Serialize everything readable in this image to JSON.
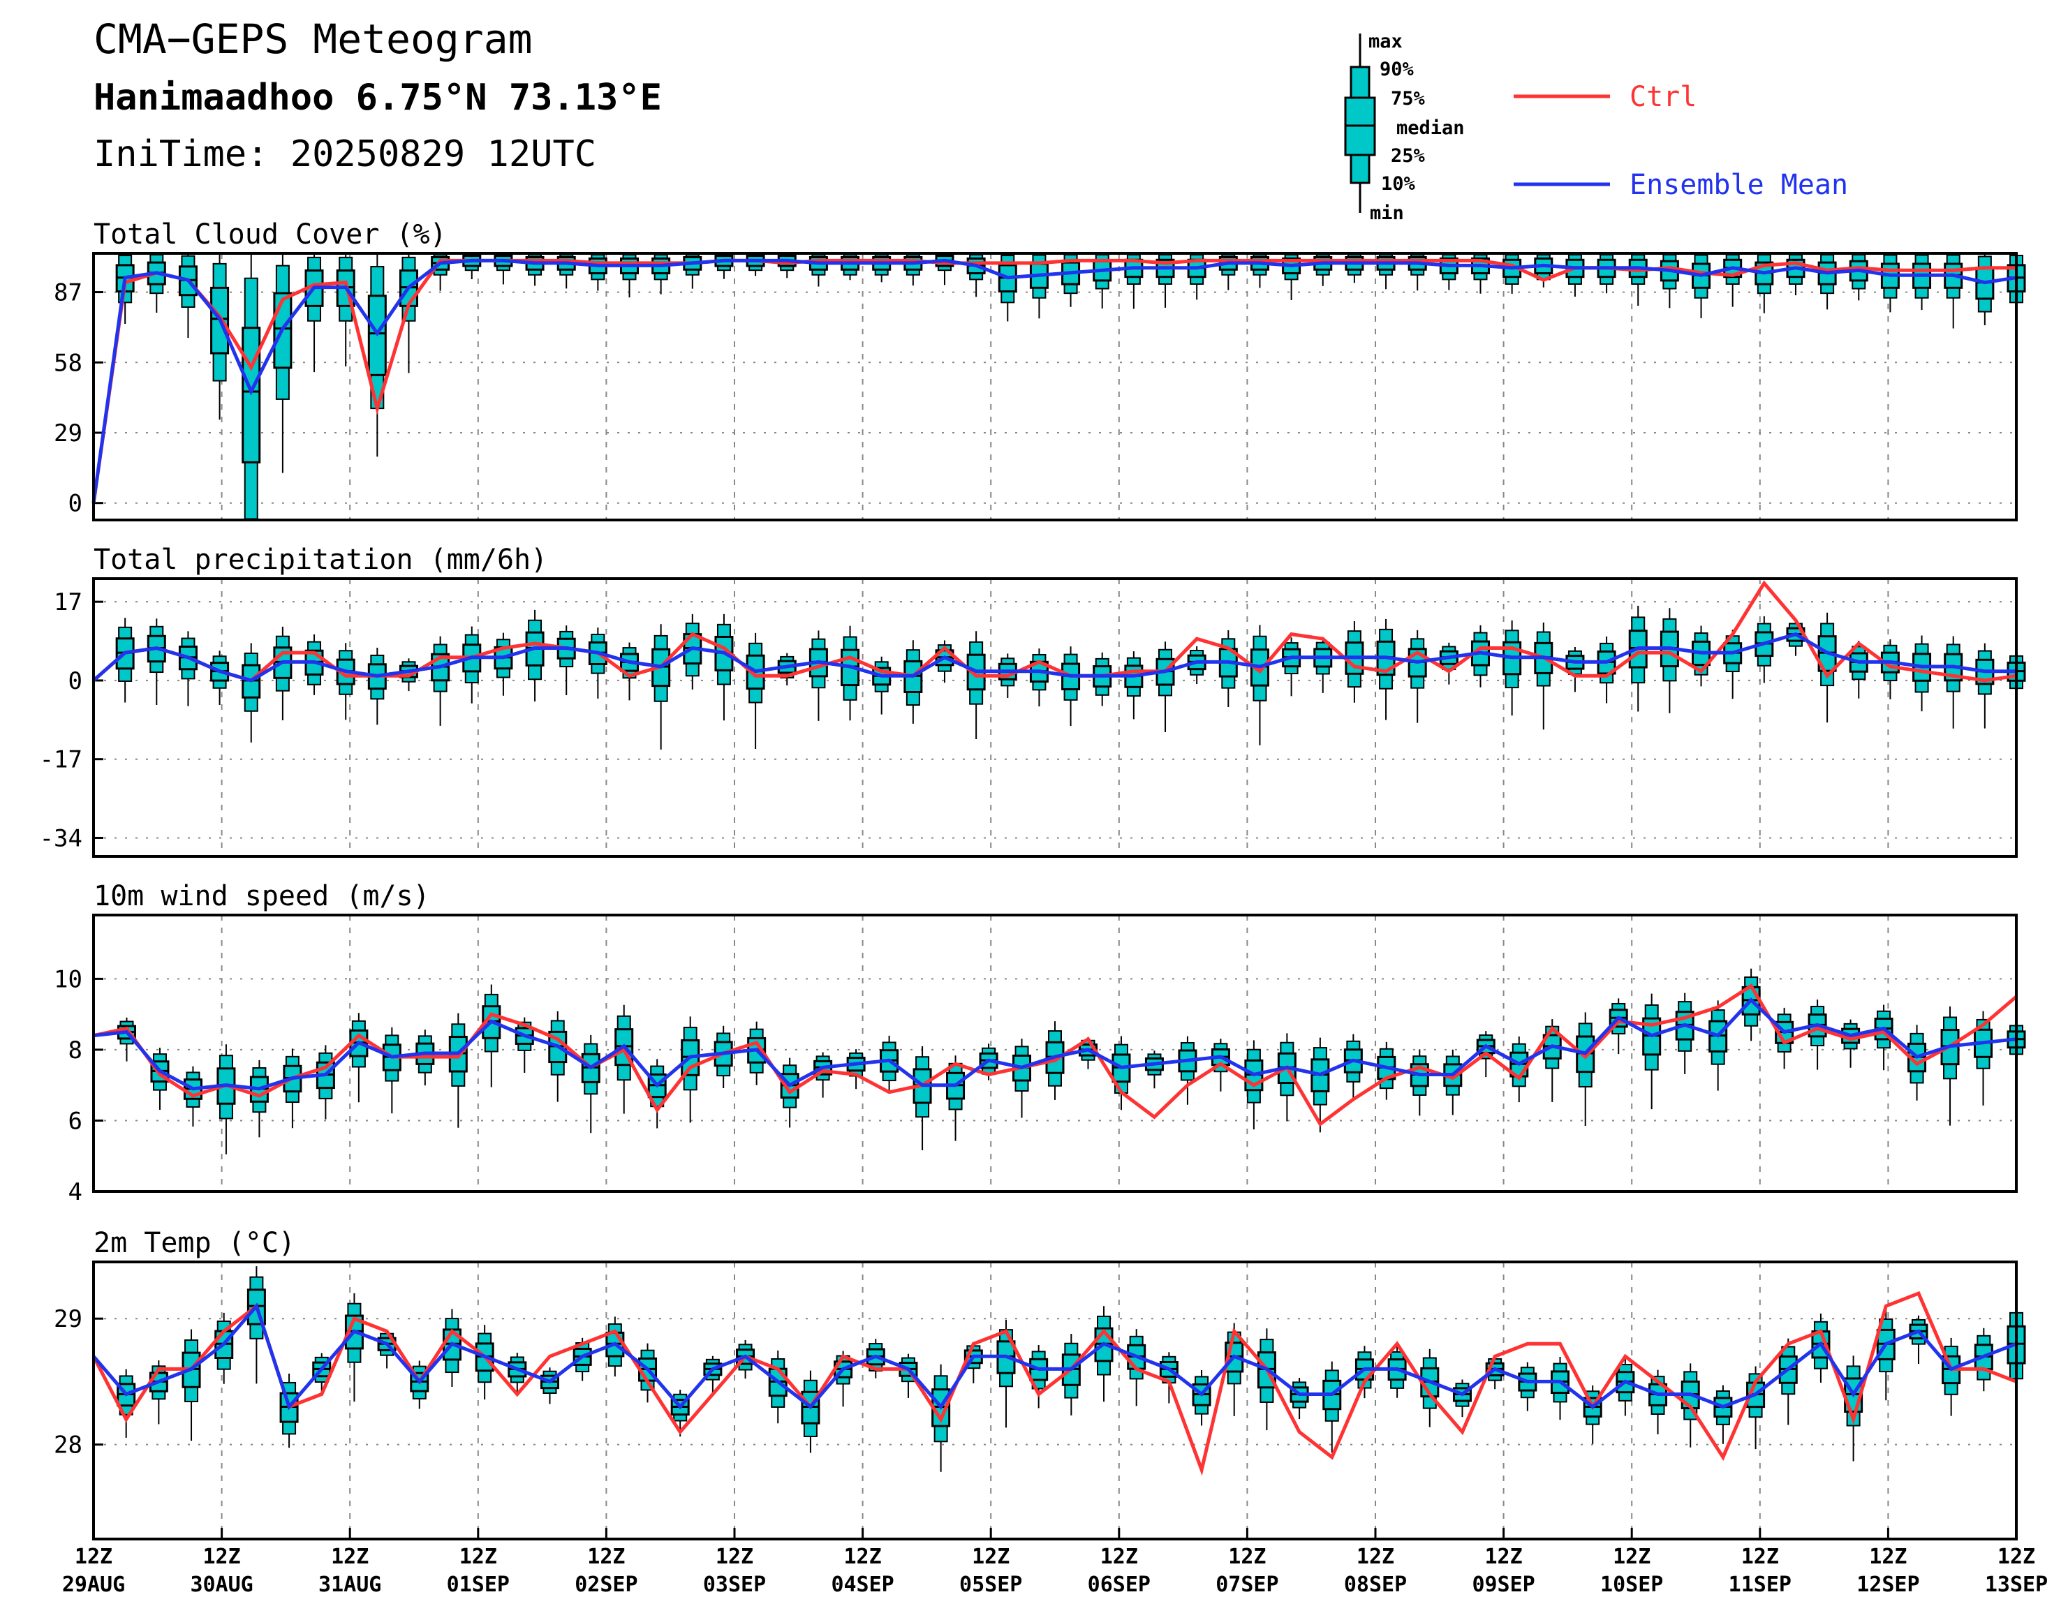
{
  "header": {
    "title": "CMA−GEPS Meteogram",
    "location": "Hanimaadhoo 6.75°N 73.13°E",
    "init_time": "IniTime: 20250829 12UTC"
  },
  "legend": {
    "box_labels": [
      "max",
      "90%",
      "75%",
      "median",
      "25%",
      "10%",
      "min"
    ],
    "ctrl": "Ctrl",
    "mean": "Ensemble Mean",
    "colors": {
      "ctrl": "#ff3333",
      "mean": "#2233ee",
      "box": "#00c8c8"
    }
  },
  "x_axis": {
    "ticks": [
      {
        "top": "12Z",
        "bottom": "29AUG"
      },
      {
        "top": "12Z",
        "bottom": "30AUG"
      },
      {
        "top": "12Z",
        "bottom": "31AUG"
      },
      {
        "top": "12Z",
        "bottom": "01SEP"
      },
      {
        "top": "12Z",
        "bottom": "02SEP"
      },
      {
        "top": "12Z",
        "bottom": "03SEP"
      },
      {
        "top": "12Z",
        "bottom": "04SEP"
      },
      {
        "top": "12Z",
        "bottom": "05SEP"
      },
      {
        "top": "12Z",
        "bottom": "06SEP"
      },
      {
        "top": "12Z",
        "bottom": "07SEP"
      },
      {
        "top": "12Z",
        "bottom": "08SEP"
      },
      {
        "top": "12Z",
        "bottom": "09SEP"
      },
      {
        "top": "12Z",
        "bottom": "10SEP"
      },
      {
        "top": "12Z",
        "bottom": "11SEP"
      },
      {
        "top": "12Z",
        "bottom": "12SEP"
      },
      {
        "top": "12Z",
        "bottom": "13SEP"
      }
    ]
  },
  "chart_data": [
    {
      "type": "box+line",
      "title": "Total Cloud Cover (%)",
      "ylim": [
        -7,
        103
      ],
      "yticks": [
        0,
        29,
        58,
        87
      ],
      "x": "6-hourly steps from 2025-08-29 12Z to 2025-09-13 12Z",
      "ctrl": [
        0,
        91,
        95,
        92,
        77,
        56,
        84,
        90,
        91,
        39,
        82,
        100,
        100,
        100,
        100,
        100,
        99,
        99,
        99,
        99,
        100,
        100,
        99,
        100,
        100,
        100,
        100,
        99,
        99,
        99,
        99,
        100,
        100,
        100,
        99,
        100,
        100,
        100,
        100,
        100,
        100,
        100,
        100,
        100,
        100,
        98,
        92,
        97,
        97,
        96,
        97,
        95,
        94,
        98,
        99,
        96,
        97,
        96,
        96,
        96,
        97,
        97
      ],
      "mean": [
        0,
        93,
        95,
        92,
        76,
        46,
        72,
        89,
        89,
        70,
        89,
        99,
        100,
        100,
        99,
        99,
        98,
        98,
        98,
        99,
        100,
        100,
        100,
        99,
        99,
        99,
        99,
        100,
        98,
        93,
        94,
        95,
        96,
        97,
        97,
        97,
        99,
        99,
        98,
        99,
        99,
        99,
        99,
        98,
        98,
        97,
        98,
        97,
        97,
        97,
        96,
        94,
        97,
        95,
        97,
        95,
        96,
        94,
        94,
        94,
        91,
        93
      ]
    },
    {
      "type": "box+line",
      "title": "Total precipitation (mm/6h)",
      "ylim": [
        -38,
        22
      ],
      "yticks": [
        -34,
        -17,
        0,
        17
      ],
      "ctrl": [
        0,
        6,
        7,
        5,
        2,
        0,
        6,
        6,
        1,
        1,
        1,
        5,
        5,
        7,
        8,
        7,
        6,
        1,
        3,
        10,
        7,
        1,
        1,
        3,
        5,
        2,
        1,
        7,
        1,
        1,
        4,
        1,
        1,
        2,
        2,
        9,
        7,
        2,
        10,
        9,
        3,
        2,
        6,
        2,
        7,
        7,
        5,
        1,
        1,
        6,
        6,
        2,
        10,
        21,
        13,
        1,
        8,
        3,
        2,
        1,
        0,
        1
      ],
      "mean": [
        0,
        6,
        7,
        5,
        2,
        0,
        4,
        4,
        2,
        1,
        2,
        3,
        5,
        5,
        7,
        7,
        6,
        4,
        3,
        7,
        6,
        2,
        3,
        4,
        3,
        1,
        1,
        5,
        2,
        2,
        2,
        1,
        1,
        1,
        2,
        4,
        4,
        3,
        5,
        5,
        5,
        5,
        4,
        5,
        6,
        5,
        5,
        4,
        4,
        7,
        7,
        6,
        6,
        8,
        10,
        6,
        4,
        4,
        3,
        3,
        2,
        2
      ]
    },
    {
      "type": "box+line",
      "title": "10m wind speed (m/s)",
      "ylim": [
        4,
        11.8
      ],
      "yticks": [
        4,
        6,
        8,
        10
      ],
      "ctrl": [
        8.4,
        8.6,
        7.3,
        6.7,
        7.0,
        6.7,
        7.2,
        7.5,
        8.4,
        7.8,
        7.8,
        7.8,
        9.0,
        8.7,
        8.3,
        7.5,
        8.0,
        6.3,
        7.5,
        7.9,
        8.2,
        6.8,
        7.4,
        7.3,
        6.8,
        7.0,
        7.6,
        7.3,
        7.5,
        7.7,
        8.3,
        6.8,
        6.1,
        7.0,
        7.6,
        7.0,
        7.5,
        5.9,
        6.6,
        7.2,
        7.5,
        7.2,
        7.9,
        7.2,
        8.6,
        7.8,
        8.8,
        8.7,
        8.9,
        9.2,
        9.8,
        8.2,
        8.6,
        8.3,
        8.5,
        7.6,
        8.1,
        8.7,
        9.5
      ],
      "mean": [
        8.4,
        8.5,
        7.4,
        6.9,
        7.0,
        6.9,
        7.2,
        7.3,
        8.2,
        7.8,
        7.9,
        7.9,
        8.8,
        8.4,
        8.1,
        7.5,
        8.1,
        7.0,
        7.8,
        7.9,
        8.0,
        7.0,
        7.5,
        7.6,
        7.7,
        7.0,
        7.0,
        7.7,
        7.5,
        7.8,
        8.0,
        7.5,
        7.6,
        7.7,
        7.8,
        7.3,
        7.5,
        7.3,
        7.7,
        7.5,
        7.3,
        7.3,
        8.1,
        7.6,
        8.1,
        7.9,
        8.9,
        8.4,
        8.7,
        8.4,
        9.4,
        8.5,
        8.7,
        8.4,
        8.6,
        7.8,
        8.1,
        8.2,
        8.3
      ]
    },
    {
      "type": "box+line",
      "title": "2m Temp (°C)",
      "ylim": [
        27.25,
        29.45
      ],
      "yticks": [
        28,
        29
      ],
      "ctrl": [
        28.7,
        28.2,
        28.6,
        28.6,
        28.9,
        29.1,
        28.3,
        28.4,
        29.0,
        28.9,
        28.5,
        28.9,
        28.7,
        28.4,
        28.7,
        28.8,
        28.9,
        28.5,
        28.1,
        28.4,
        28.7,
        28.6,
        28.3,
        28.7,
        28.6,
        28.6,
        28.2,
        28.8,
        28.9,
        28.4,
        28.6,
        28.9,
        28.6,
        28.5,
        27.8,
        28.9,
        28.6,
        28.1,
        27.9,
        28.5,
        28.8,
        28.4,
        28.1,
        28.7,
        28.8,
        28.8,
        28.3,
        28.7,
        28.5,
        28.3,
        27.9,
        28.5,
        28.8,
        28.9,
        28.2,
        29.1,
        29.2,
        28.6,
        28.6,
        28.5
      ],
      "mean": [
        28.7,
        28.4,
        28.5,
        28.6,
        28.8,
        29.1,
        28.3,
        28.6,
        28.9,
        28.8,
        28.5,
        28.8,
        28.7,
        28.6,
        28.5,
        28.7,
        28.8,
        28.6,
        28.3,
        28.6,
        28.7,
        28.5,
        28.3,
        28.6,
        28.7,
        28.6,
        28.3,
        28.7,
        28.7,
        28.6,
        28.6,
        28.8,
        28.7,
        28.6,
        28.4,
        28.7,
        28.6,
        28.4,
        28.4,
        28.6,
        28.6,
        28.5,
        28.4,
        28.6,
        28.5,
        28.5,
        28.3,
        28.5,
        28.4,
        28.4,
        28.3,
        28.4,
        28.6,
        28.8,
        28.4,
        28.8,
        28.9,
        28.6,
        28.7,
        28.8
      ]
    }
  ]
}
